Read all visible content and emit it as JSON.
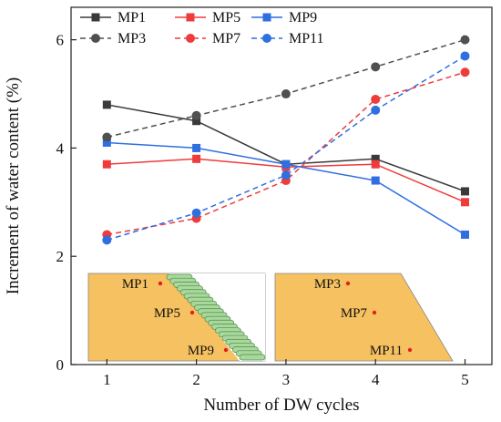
{
  "chart_data": {
    "type": "line",
    "xlabel": "Number of DW cycles",
    "ylabel": "Increment of water content (%)",
    "xlim": [
      0.6,
      5.3
    ],
    "ylim": [
      0,
      6.6
    ],
    "xticks": [
      1,
      2,
      3,
      4,
      5
    ],
    "yticks": [
      0,
      2,
      4,
      6
    ],
    "grid": false,
    "legend_position": "top-left",
    "x": [
      1,
      2,
      3,
      4,
      5
    ],
    "series": [
      {
        "name": "MP1",
        "values": [
          4.8,
          4.5,
          3.7,
          3.8,
          3.2
        ],
        "color": "#3a3a3a",
        "dash": false,
        "marker": "square"
      },
      {
        "name": "MP5",
        "values": [
          3.7,
          3.8,
          3.65,
          3.7,
          3.0
        ],
        "color": "#ef3b3b",
        "dash": false,
        "marker": "square"
      },
      {
        "name": "MP9",
        "values": [
          4.1,
          4.0,
          3.7,
          3.4,
          2.4
        ],
        "color": "#2f6fe0",
        "dash": false,
        "marker": "square"
      },
      {
        "name": "MP3",
        "values": [
          4.2,
          4.6,
          5.0,
          5.5,
          6.0
        ],
        "color": "#505050",
        "dash": true,
        "marker": "circle"
      },
      {
        "name": "MP7",
        "values": [
          2.4,
          2.7,
          3.4,
          4.9,
          5.4
        ],
        "color": "#ef3b3b",
        "dash": true,
        "marker": "circle"
      },
      {
        "name": "MP11",
        "values": [
          2.3,
          2.8,
          3.5,
          4.7,
          5.7
        ],
        "color": "#2f6fe0",
        "dash": true,
        "marker": "circle"
      }
    ],
    "insets": [
      {
        "labels": [
          "MP1",
          "MP5",
          "MP9"
        ],
        "fill": "#f6c160",
        "shape": "slope-with-protection",
        "protection_color": "#a9d89c"
      },
      {
        "labels": [
          "MP3",
          "MP7",
          "MP11"
        ],
        "fill": "#f6c160",
        "shape": "trapezoid"
      }
    ]
  }
}
